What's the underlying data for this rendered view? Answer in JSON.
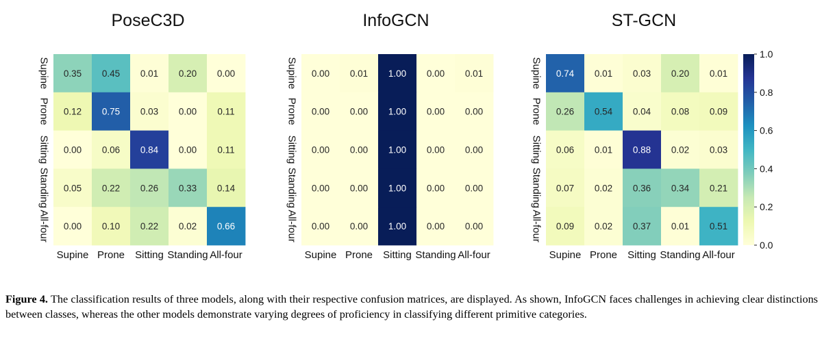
{
  "chart_data": [
    {
      "type": "heatmap",
      "title": "PoseC3D",
      "rows": [
        "Supine",
        "Prone",
        "Sitting",
        "Standing",
        "All-four"
      ],
      "columns": [
        "Supine",
        "Prone",
        "Sitting",
        "Standing",
        "All-four"
      ],
      "values": [
        [
          0.35,
          0.45,
          0.01,
          0.2,
          0.0
        ],
        [
          0.12,
          0.75,
          0.03,
          0.0,
          0.11
        ],
        [
          0.0,
          0.06,
          0.84,
          0.0,
          0.11
        ],
        [
          0.05,
          0.22,
          0.26,
          0.33,
          0.14
        ],
        [
          0.0,
          0.1,
          0.22,
          0.02,
          0.66
        ]
      ]
    },
    {
      "type": "heatmap",
      "title": "InfoGCN",
      "rows": [
        "Supine",
        "Prone",
        "Sitting",
        "Standing",
        "All-four"
      ],
      "columns": [
        "Supine",
        "Prone",
        "Sitting",
        "Standing",
        "All-four"
      ],
      "values": [
        [
          0.0,
          0.01,
          1.0,
          0.0,
          0.01
        ],
        [
          0.0,
          0.0,
          1.0,
          0.0,
          0.0
        ],
        [
          0.0,
          0.0,
          1.0,
          0.0,
          0.0
        ],
        [
          0.0,
          0.0,
          1.0,
          0.0,
          0.0
        ],
        [
          0.0,
          0.0,
          1.0,
          0.0,
          0.0
        ]
      ]
    },
    {
      "type": "heatmap",
      "title": "ST-GCN",
      "rows": [
        "Supine",
        "Prone",
        "Sitting",
        "Standing",
        "All-four"
      ],
      "columns": [
        "Supine",
        "Prone",
        "Sitting",
        "Standing",
        "All-four"
      ],
      "values": [
        [
          0.74,
          0.01,
          0.03,
          0.2,
          0.01
        ],
        [
          0.26,
          0.54,
          0.04,
          0.08,
          0.09
        ],
        [
          0.06,
          0.01,
          0.88,
          0.02,
          0.03
        ],
        [
          0.07,
          0.02,
          0.36,
          0.34,
          0.21
        ],
        [
          0.09,
          0.02,
          0.37,
          0.01,
          0.51
        ]
      ]
    }
  ],
  "colorbar": {
    "colormap": "YlGnBu",
    "range": [
      0.0,
      1.0
    ],
    "ticks": [
      "1.0",
      "0.8",
      "0.6",
      "0.4",
      "0.2",
      "0.0"
    ]
  },
  "caption": {
    "label": "Figure 4.",
    "text": " The classification results of three models, along with their respective confusion matrices, are displayed. As shown, InfoGCN faces challenges in achieving clear distinctions between classes, whereas the other models demonstrate varying degrees of proficiency in classifying different primitive categories."
  }
}
